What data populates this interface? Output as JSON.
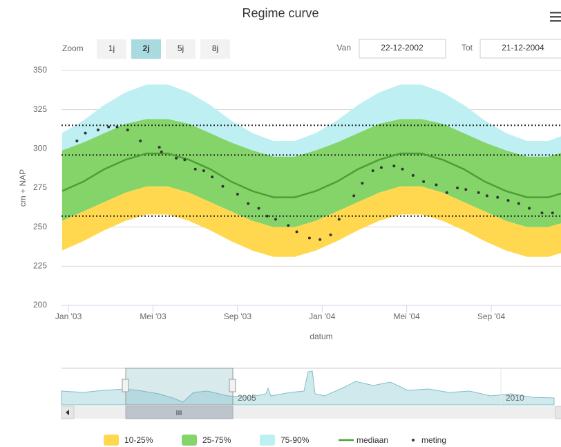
{
  "chart_data": {
    "type": "area",
    "title": "Regime curve",
    "y_label": "cm + NAP",
    "x_label": "datum",
    "range_selector": {
      "label": "Zoom",
      "buttons": [
        "1j",
        "2j",
        "5j",
        "8j"
      ],
      "selected": 1
    },
    "date_inputs": {
      "from_label": "Van",
      "from": "22-12-2002",
      "to_label": "Tot",
      "to": "21-12-2004"
    },
    "x": [
      -0.3,
      0.7,
      1.7,
      2.7,
      3.7,
      4.7,
      5.7,
      6.7,
      7.7,
      8.7,
      9.7,
      10.7,
      11.7,
      12.7,
      13.7,
      14.7,
      15.7,
      16.7,
      17.7,
      18.7,
      19.7,
      20.7,
      21.7,
      22.7,
      23.7
    ],
    "xlim": [
      -0.33,
      23.3
    ],
    "xticks": [
      {
        "value": 0,
        "label": "Jan '03"
      },
      {
        "value": 4,
        "label": "Mei '03"
      },
      {
        "value": 8,
        "label": "Sep '03"
      },
      {
        "value": 12,
        "label": "Jan '04"
      },
      {
        "value": 16,
        "label": "Mei '04"
      },
      {
        "value": 20,
        "label": "Sep '04"
      }
    ],
    "ylim": [
      200,
      350
    ],
    "yticks": [
      200,
      225,
      250,
      275,
      300,
      325,
      350
    ],
    "grid": true,
    "bands": [
      {
        "name": "10-25%",
        "color": "#ffd84f",
        "low": [
          235,
          241,
          248,
          254,
          258,
          258,
          254,
          248,
          241,
          235,
          231,
          231,
          235,
          241,
          248,
          254,
          258,
          258,
          254,
          248,
          241,
          235,
          231,
          231,
          235
        ],
        "high": [
          254,
          260,
          266,
          272,
          276,
          276,
          272,
          266,
          260,
          254,
          250,
          250,
          254,
          260,
          266,
          272,
          276,
          276,
          272,
          266,
          260,
          254,
          250,
          250,
          254
        ]
      },
      {
        "name": "25-75%",
        "color": "#84d46a",
        "low": [
          254,
          260,
          266,
          272,
          276,
          276,
          272,
          266,
          260,
          254,
          250,
          250,
          254,
          260,
          266,
          272,
          276,
          276,
          272,
          266,
          260,
          254,
          250,
          250,
          254
        ],
        "high": [
          299,
          304,
          310,
          316,
          319,
          319,
          316,
          310,
          304,
          299,
          295,
          295,
          299,
          304,
          310,
          316,
          319,
          319,
          316,
          310,
          304,
          299,
          295,
          295,
          299
        ]
      },
      {
        "name": "75-90%",
        "color": "#bdeff3",
        "low": [
          299,
          304,
          310,
          316,
          319,
          319,
          316,
          310,
          304,
          299,
          295,
          295,
          299,
          304,
          310,
          316,
          319,
          319,
          316,
          310,
          304,
          299,
          295,
          295,
          299
        ],
        "high": [
          310,
          318,
          328,
          336,
          341,
          341,
          336,
          328,
          318,
          310,
          305,
          305,
          310,
          318,
          328,
          336,
          341,
          341,
          336,
          328,
          318,
          310,
          305,
          305,
          310
        ]
      }
    ],
    "series": [
      {
        "name": "mediaan",
        "color": "#4e9e35",
        "values": [
          273,
          279,
          287,
          293,
          297,
          297,
          293,
          287,
          279,
          273,
          269,
          269,
          273,
          279,
          287,
          293,
          297,
          297,
          293,
          287,
          279,
          273,
          269,
          269,
          273
        ]
      }
    ],
    "points": {
      "name": "meting",
      "color": "#333333",
      "x": [
        0.4,
        0.8,
        1.4,
        1.9,
        2.3,
        2.8,
        3.4,
        4.3,
        4.4,
        5.1,
        5.5,
        6.0,
        6.4,
        6.8,
        7.3,
        8.0,
        8.5,
        9.0,
        9.4,
        9.8,
        10.4,
        10.8,
        11.4,
        11.9,
        12.4,
        12.8,
        13.5,
        13.9,
        14.4,
        14.8,
        15.4,
        15.8,
        16.3,
        16.8,
        17.4,
        17.9,
        18.4,
        18.8,
        19.4,
        19.8,
        20.3,
        20.8,
        21.3,
        21.8,
        22.4,
        22.9
      ],
      "y": [
        305,
        310,
        312,
        314,
        314,
        312,
        305,
        301,
        298,
        294,
        293,
        287,
        286,
        282,
        276,
        271,
        265,
        262,
        257,
        255,
        251,
        247,
        243,
        242,
        245,
        255,
        270,
        278,
        286,
        288,
        289,
        287,
        283,
        279,
        277,
        272,
        275,
        274,
        272,
        270,
        269,
        267,
        265,
        262,
        259,
        259
      ]
    },
    "plot_lines": {
      "color": "#222222",
      "values": [
        315,
        296,
        257
      ]
    },
    "navigator": {
      "labels": [
        "2005",
        "2010"
      ]
    }
  }
}
